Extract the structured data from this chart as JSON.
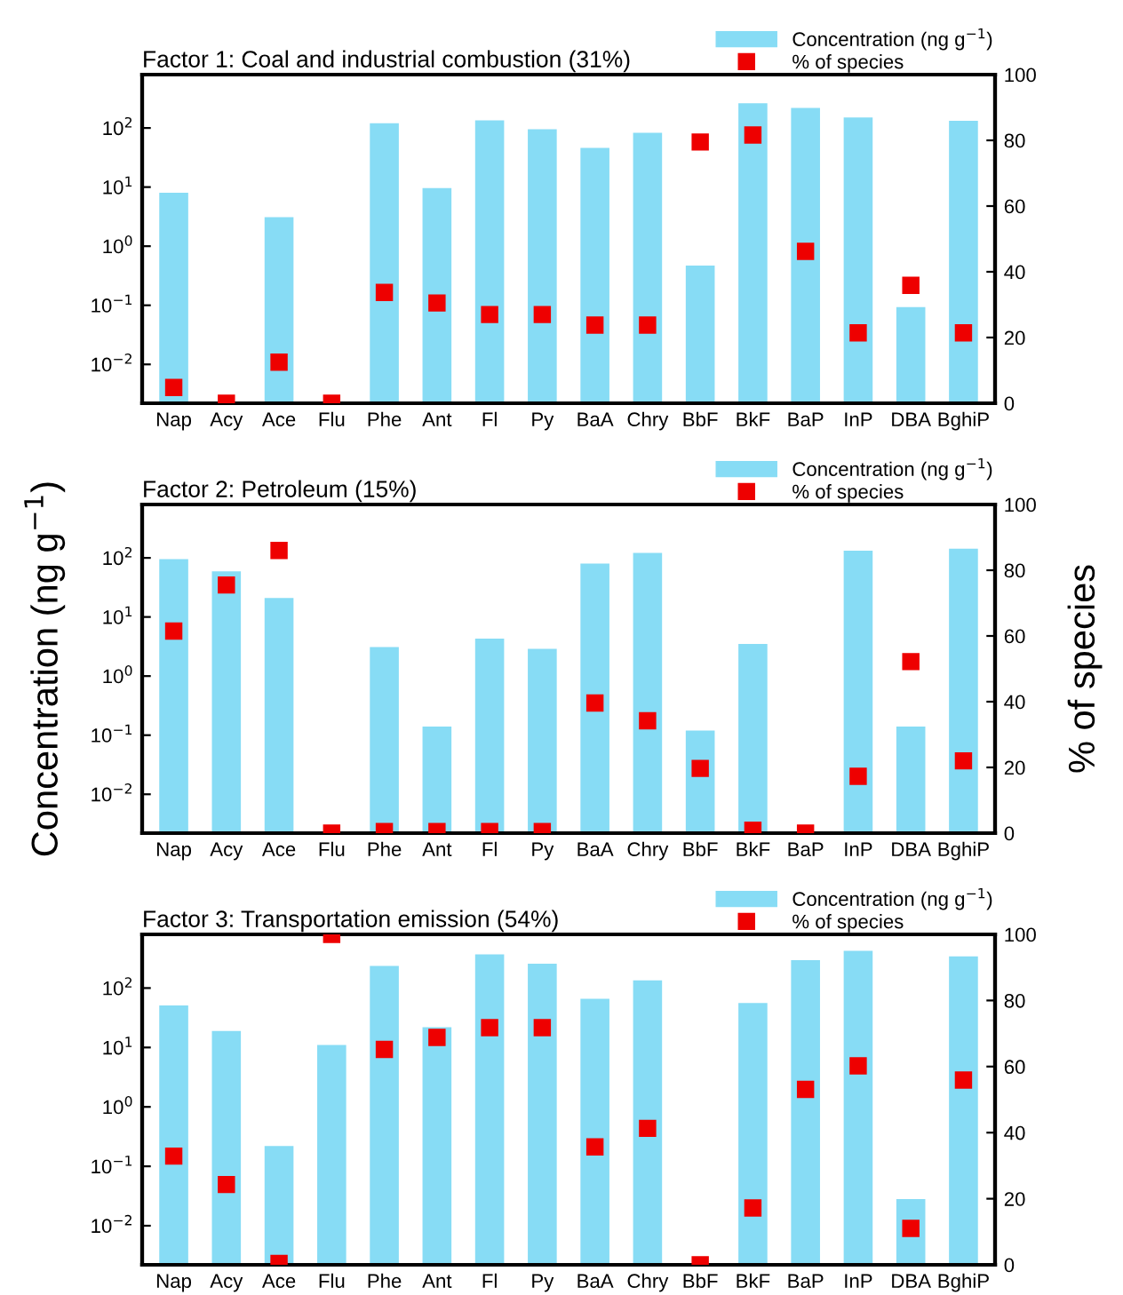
{
  "chart_data": [
    {
      "type": "bar",
      "title": "Factor 1: Coal and industrial combustion (31%)",
      "categories": [
        "Nap",
        "Acy",
        "Ace",
        "Flu",
        "Phe",
        "Ant",
        "Fl",
        "Py",
        "BaA",
        "Chry",
        "BbF",
        "BkF",
        "BaP",
        "InP",
        "DBA",
        "BghiP"
      ],
      "series": [
        {
          "name": "Concentration (ng g$^{−1}$)",
          "color": "#87dcf5",
          "values": [
            8,
            null,
            3.1,
            null,
            120,
            9.6,
            135,
            95,
            46,
            83,
            0.47,
            263,
            218,
            151,
            0.093,
            132
          ]
        },
        {
          "name": "% of species",
          "type": "scatter",
          "axis": "y2",
          "color": "#ee0000",
          "values": [
            4.8,
            0,
            12.5,
            0,
            33.7,
            30.5,
            27,
            27,
            23.8,
            23.8,
            79.5,
            81.6,
            46.2,
            21.4,
            35.9,
            21.4
          ]
        }
      ],
      "log": "y",
      "ylim": [
        0.0022,
        800
      ],
      "yticks": [
        {
          "value": 0.01,
          "label": "10$^{−2}$"
        },
        {
          "value": 0.1,
          "label": "10$^{−1}$"
        },
        {
          "value": 1,
          "label": "10$^{0}$"
        },
        {
          "value": 10,
          "label": "10$^{1}$"
        },
        {
          "value": 100,
          "label": "10$^{2}$"
        }
      ],
      "y2lim": [
        0,
        100
      ],
      "y2ticks": [
        0,
        20,
        40,
        60,
        80,
        100
      ],
      "marker": "square",
      "legend": "top right",
      "grid": false
    },
    {
      "type": "bar",
      "title": "Factor 2: Petroleum (15%)",
      "ylabel": "Concentration (ng g$^{−1}$)",
      "y2label": "% of species",
      "categories": [
        "Nap",
        "Acy",
        "Ace",
        "Flu",
        "Phe",
        "Ant",
        "Fl",
        "Py",
        "BaA",
        "Chry",
        "BbF",
        "BkF",
        "BaP",
        "InP",
        "DBA",
        "BghiP"
      ],
      "series": [
        {
          "name": "Concentration (ng g$^{−1}$)",
          "color": "#87dcf5",
          "values": [
            95,
            59,
            21,
            null,
            3.1,
            0.14,
            4.3,
            2.9,
            80,
            121,
            0.12,
            3.5,
            null,
            132,
            0.14,
            143
          ]
        },
        {
          "name": "% of species",
          "type": "scatter",
          "axis": "y2",
          "color": "#ee0000",
          "values": [
            61.5,
            75.5,
            86,
            0,
            0.5,
            0.5,
            0.5,
            0.5,
            39.6,
            34.2,
            19.7,
            0.9,
            0,
            17.3,
            52.2,
            22
          ]
        }
      ],
      "log": "y",
      "ylim": [
        0.0022,
        800
      ],
      "yticks": [
        {
          "value": 0.01,
          "label": "10$^{−2}$"
        },
        {
          "value": 0.1,
          "label": "10$^{−1}$"
        },
        {
          "value": 1,
          "label": "10$^{0}$"
        },
        {
          "value": 10,
          "label": "10$^{1}$"
        },
        {
          "value": 100,
          "label": "10$^{2}$"
        }
      ],
      "y2lim": [
        0,
        100
      ],
      "y2ticks": [
        0,
        20,
        40,
        60,
        80,
        100
      ],
      "marker": "square",
      "legend": "top right",
      "grid": false
    },
    {
      "type": "bar",
      "title": "Factor 3: Transportation emission (54%)",
      "categories": [
        "Nap",
        "Acy",
        "Ace",
        "Flu",
        "Phe",
        "Ant",
        "Fl",
        "Py",
        "BaA",
        "Chry",
        "BbF",
        "BkF",
        "BaP",
        "InP",
        "DBA",
        "BghiP"
      ],
      "series": [
        {
          "name": "Concentration (ng g$^{−1}$)",
          "color": "#87dcf5",
          "values": [
            51,
            19,
            0.22,
            11,
            235,
            22,
            370,
            257,
            66,
            135,
            null,
            56,
            295,
            425,
            0.028,
            340
          ]
        },
        {
          "name": "% of species",
          "type": "scatter",
          "axis": "y2",
          "color": "#ee0000",
          "values": [
            32.9,
            24.3,
            0.4,
            100,
            65.2,
            68.8,
            71.8,
            71.8,
            35.7,
            41.3,
            0,
            17.2,
            53.1,
            60.2,
            11,
            55.9
          ]
        }
      ],
      "log": "y",
      "ylim": [
        0.0022,
        800
      ],
      "yticks": [
        {
          "value": 0.01,
          "label": "10$^{−2}$"
        },
        {
          "value": 0.1,
          "label": "10$^{−1}$"
        },
        {
          "value": 1,
          "label": "10$^{0}$"
        },
        {
          "value": 10,
          "label": "10$^{1}$"
        },
        {
          "value": 100,
          "label": "10$^{2}$"
        }
      ],
      "y2lim": [
        0,
        100
      ],
      "y2ticks": [
        0,
        20,
        40,
        60,
        80,
        100
      ],
      "marker": "square",
      "legend": "top right",
      "grid": false
    }
  ]
}
